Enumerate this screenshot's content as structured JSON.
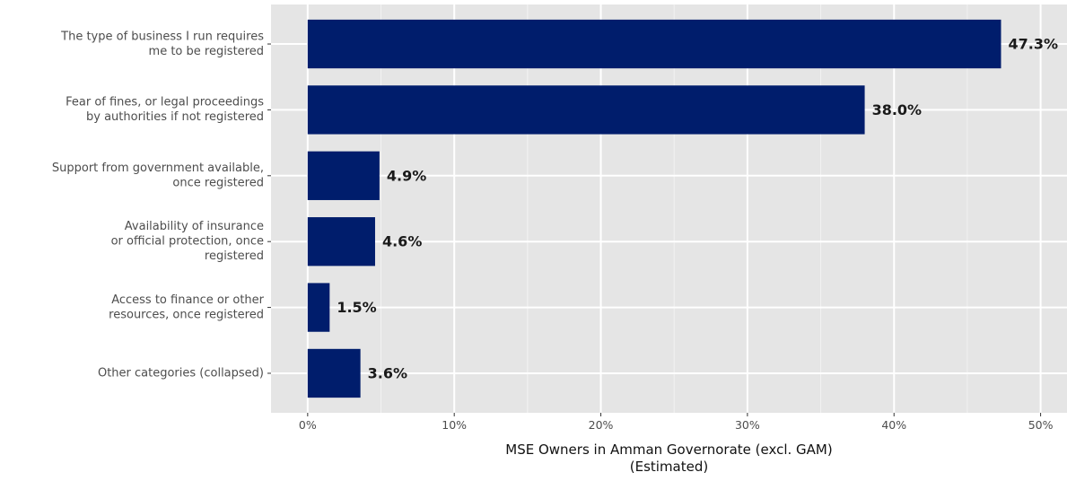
{
  "chart_data": {
    "type": "bar",
    "orientation": "horizontal",
    "categories": [
      [
        "The type of business I run requires",
        "me to be registered"
      ],
      [
        "Fear of fines, or legal proceedings",
        "by authorities if not registered"
      ],
      [
        "Support from government available,",
        "once registered"
      ],
      [
        "Availability of insurance",
        "or official protection, once",
        "registered"
      ],
      [
        "Access to finance or other",
        "resources, once registered"
      ],
      [
        "Other categories (collapsed)"
      ]
    ],
    "values": [
      47.3,
      38.0,
      4.9,
      4.6,
      1.5,
      3.6
    ],
    "value_labels": [
      "47.3%",
      "38.0%",
      "4.9%",
      "4.6%",
      "1.5%",
      "3.6%"
    ],
    "xlabel": [
      "MSE Owners in Amman Governorate (excl. GAM)",
      "(Estimated)"
    ],
    "ylabel": "",
    "title": "",
    "xlim": [
      -2.5,
      51.8
    ],
    "x_ticks": [
      0,
      10,
      20,
      30,
      40,
      50
    ],
    "x_tick_labels": [
      "0%",
      "10%",
      "20%",
      "30%",
      "40%",
      "50%"
    ],
    "grid": true,
    "legend": "none",
    "colors": {
      "bar": "#001d6c",
      "panel": "#e5e5e5",
      "grid_major": "#ffffff",
      "grid_minor": "#f2f2f2"
    }
  }
}
